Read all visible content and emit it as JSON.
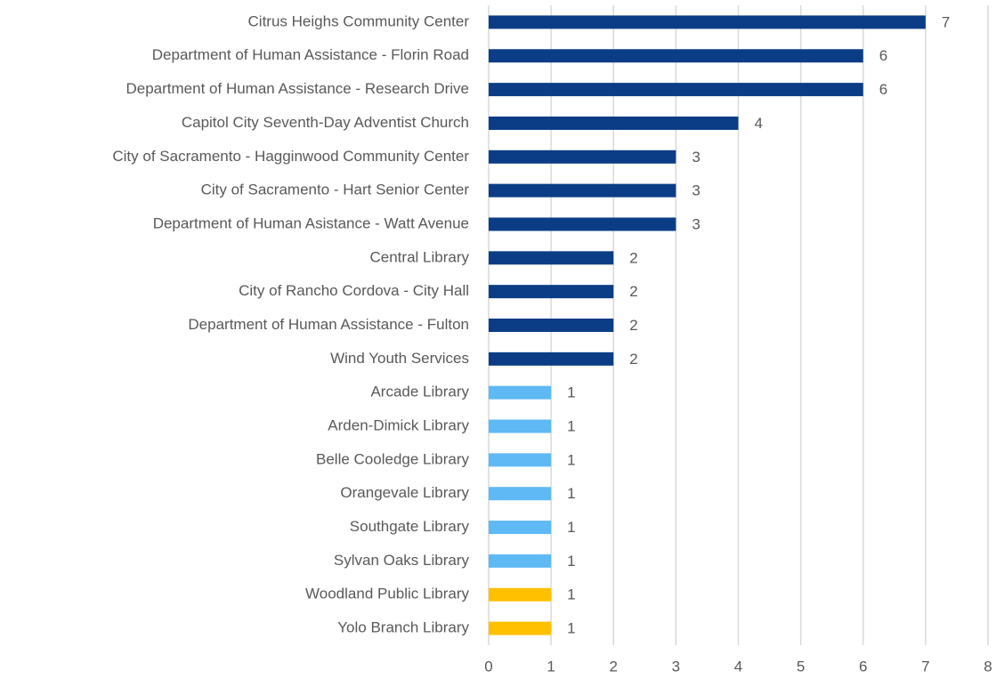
{
  "chart_data": {
    "type": "barh",
    "categories": [
      "Citrus Heighs Community Center",
      "Department of Human Assistance - Florin Road",
      "Department of Human Assistance - Research Drive",
      "Capitol City Seventh-Day Adventist Church",
      "City of Sacramento - Hagginwood Community Center",
      "City of Sacramento - Hart Senior Center",
      "Department of Human Asistance - Watt Avenue",
      "Central Library",
      "City of Rancho Cordova - City Hall",
      "Department of Human Assistance - Fulton",
      "Wind Youth Services",
      "Arcade Library",
      "Arden-Dimick Library",
      "Belle Cooledge Library",
      "Orangevale Library",
      "Southgate Library",
      "Sylvan Oaks Library",
      "Woodland Public Library",
      "Yolo Branch Library"
    ],
    "values": [
      7,
      6,
      6,
      4,
      3,
      3,
      3,
      2,
      2,
      2,
      2,
      1,
      1,
      1,
      1,
      1,
      1,
      1,
      1
    ],
    "colors": [
      "#0a3d85",
      "#0a3d85",
      "#0a3d85",
      "#0a3d85",
      "#0a3d85",
      "#0a3d85",
      "#0a3d85",
      "#0a3d85",
      "#0a3d85",
      "#0a3d85",
      "#0a3d85",
      "#5eb9f4",
      "#5eb9f4",
      "#5eb9f4",
      "#5eb9f4",
      "#5eb9f4",
      "#5eb9f4",
      "#ffc000",
      "#ffc000"
    ],
    "xlim": [
      0,
      8
    ],
    "xticks": [
      0,
      1,
      2,
      3,
      4,
      5,
      6,
      7,
      8
    ],
    "grid": true
  }
}
